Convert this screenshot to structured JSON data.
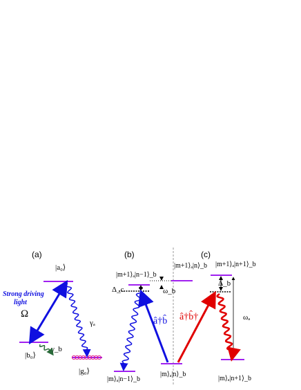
{
  "panels": [
    {
      "label": "(a)",
      "levels": {
        "a0": "|a₀⟩",
        "b0": "|b₀⟩",
        "g0": "|g₀⟩"
      },
      "drive": [
        "Strong driving",
        "light"
      ],
      "omega": "Ω",
      "gamma_a": "γₐ",
      "gamma_b": "γ_b"
    },
    {
      "label": "(b)",
      "levels": {
        "top_left": "|m+1⟩ₐ|n−1⟩_b",
        "top_right": "|m+1⟩ₐ|n⟩_b",
        "bottom_left": "|m⟩ₐ|n−1⟩_b",
        "bottom_right": "|m⟩ₐ|n⟩_b"
      },
      "delta": "Δ_c",
      "omega": "ω_b",
      "operator": "â†b̂"
    },
    {
      "label": "(c)",
      "levels": {
        "top": "|m+1⟩ₐ|n+1⟩_b",
        "bottom": "|m⟩ₐ|n+1⟩_b"
      },
      "delta": "Δ_b",
      "omega": "ωₐ",
      "operator": "â†b̂†"
    }
  ]
}
